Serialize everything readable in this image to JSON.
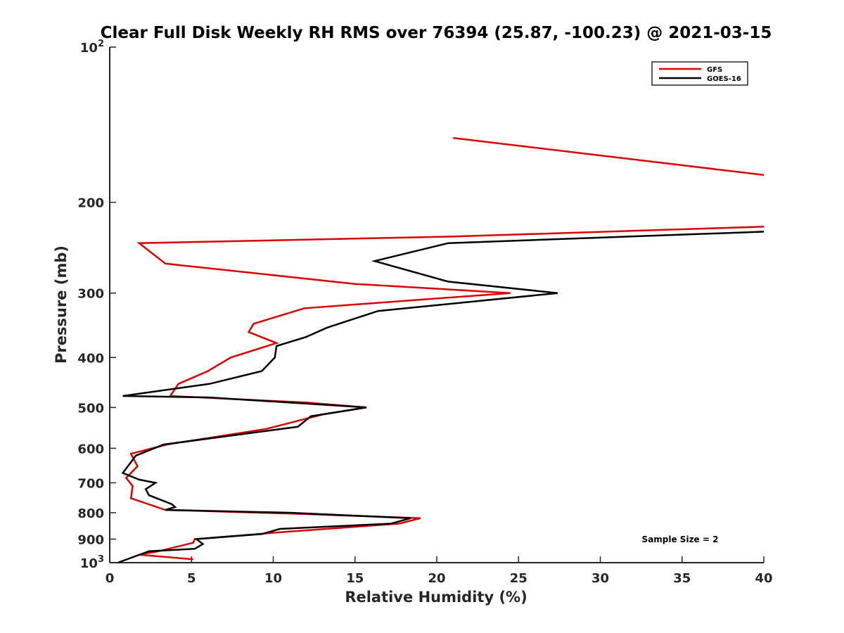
{
  "chart_data": {
    "type": "line",
    "title": "Clear Full Disk Weekly RH RMS over 76394 (25.87, -100.23) @ 2021-03-15",
    "xlabel": "Relative Humidity (%)",
    "ylabel": "Pressure (mb)",
    "xlim": [
      0,
      40
    ],
    "ylim": [
      100,
      1000
    ],
    "y_scale": "log",
    "y_reversed": true,
    "grid": false,
    "legend_position": "top-right",
    "x_ticks": [
      0,
      5,
      10,
      15,
      20,
      25,
      30,
      35,
      40
    ],
    "y_ticks": [
      {
        "value": 100,
        "base": "10",
        "exp": "2"
      },
      {
        "value": 200,
        "label": "200"
      },
      {
        "value": 300,
        "label": "300"
      },
      {
        "value": 400,
        "label": "400"
      },
      {
        "value": 500,
        "label": "500"
      },
      {
        "value": 600,
        "label": "600"
      },
      {
        "value": 700,
        "label": "700"
      },
      {
        "value": 800,
        "label": "800"
      },
      {
        "value": 900,
        "label": "900"
      },
      {
        "value": 1000,
        "base": "10",
        "exp": "3"
      }
    ],
    "series": [
      {
        "name": "GFS",
        "color": "#dd0000",
        "segments": [
          [
            [
              21.0,
              150
            ],
            [
              40.0,
              177
            ]
          ],
          [
            [
              40.0,
              223
            ],
            [
              21.0,
              233
            ],
            [
              1.8,
              240
            ],
            [
              3.4,
              263
            ],
            [
              15.0,
              288
            ],
            [
              24.5,
              300
            ],
            [
              11.9,
              321
            ],
            [
              8.8,
              344
            ],
            [
              8.5,
              357
            ],
            [
              10.2,
              375
            ],
            [
              7.4,
              400
            ],
            [
              6.0,
              425
            ],
            [
              4.2,
              450
            ],
            [
              3.7,
              475
            ],
            [
              12.0,
              489
            ],
            [
              15.7,
              500
            ],
            [
              13.0,
              516
            ],
            [
              9.6,
              550
            ],
            [
              3.5,
              590
            ],
            [
              1.3,
              615
            ],
            [
              1.7,
              650
            ],
            [
              1.0,
              685
            ],
            [
              1.4,
              710
            ],
            [
              1.3,
              750
            ],
            [
              3.4,
              790
            ],
            [
              12.0,
              805
            ],
            [
              19.0,
              820
            ],
            [
              17.7,
              840
            ],
            [
              11.0,
              870
            ],
            [
              5.2,
              900
            ],
            [
              5.1,
              915
            ],
            [
              3.0,
              950
            ],
            [
              1.8,
              965
            ],
            [
              5.1,
              985
            ]
          ]
        ]
      },
      {
        "name": "GOES-16",
        "color": "#000000",
        "segments": [
          [
            [
              40.0,
              228
            ],
            [
              20.7,
              240
            ],
            [
              16.2,
              260
            ],
            [
              20.7,
              285
            ],
            [
              27.4,
              300
            ],
            [
              16.4,
              325
            ],
            [
              13.3,
              350
            ],
            [
              12.0,
              365
            ],
            [
              10.2,
              380
            ],
            [
              10.1,
              400
            ],
            [
              9.3,
              425
            ],
            [
              6.1,
              450
            ],
            [
              0.8,
              475
            ],
            [
              6.0,
              478
            ],
            [
              15.7,
              500
            ],
            [
              12.3,
              520
            ],
            [
              11.5,
              545
            ],
            [
              3.3,
              590
            ],
            [
              1.6,
              620
            ],
            [
              0.8,
              670
            ],
            [
              1.8,
              690
            ],
            [
              2.8,
              700
            ],
            [
              2.2,
              720
            ],
            [
              2.4,
              740
            ],
            [
              3.8,
              770
            ],
            [
              4.0,
              780
            ],
            [
              3.4,
              790
            ],
            [
              11.0,
              800
            ],
            [
              18.4,
              820
            ],
            [
              17.2,
              840
            ],
            [
              10.4,
              860
            ],
            [
              9.3,
              880
            ],
            [
              5.3,
              900
            ],
            [
              5.7,
              920
            ],
            [
              5.2,
              940
            ],
            [
              2.4,
              950
            ],
            [
              0.5,
              1000
            ]
          ]
        ]
      }
    ],
    "annotation": "Sample Size = 2"
  }
}
